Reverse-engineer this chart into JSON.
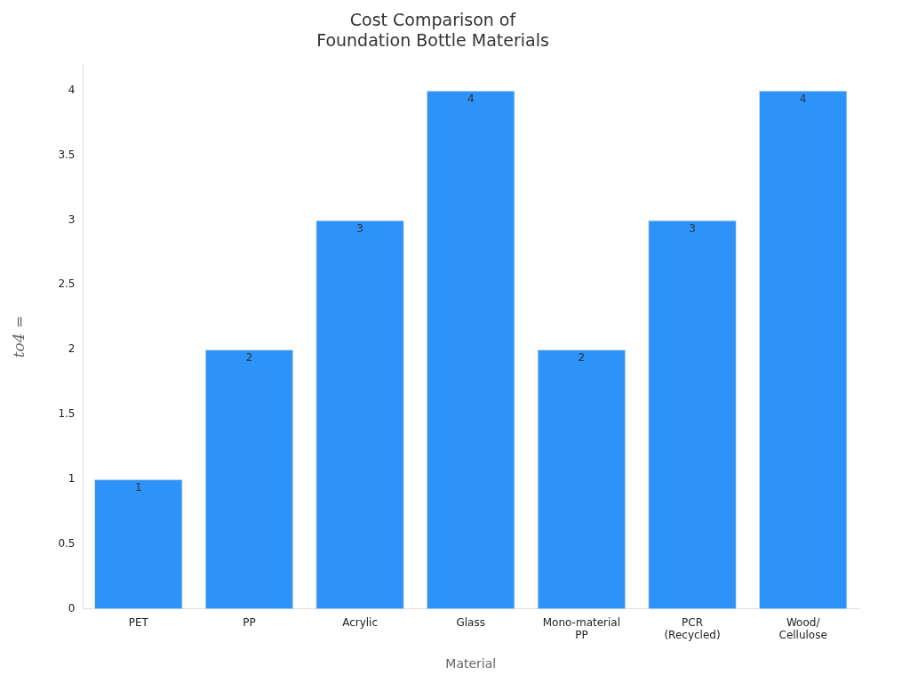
{
  "chart_data": {
    "type": "bar",
    "title": "Cost Comparison of\nFoundation Bottle Materials",
    "xlabel": "Material",
    "ylabel": "to4 =",
    "categories": [
      "PET",
      "PP",
      "Acrylic",
      "Glass",
      "Mono-material\nPP",
      "PCR\n(Recycled)",
      "Wood/\nCellulose"
    ],
    "values": [
      1,
      2,
      3,
      4,
      2,
      3,
      4
    ],
    "color": "#2e93f9",
    "ylim": [
      0,
      4.2
    ],
    "yticks": [
      0,
      0.5,
      1,
      1.5,
      2,
      2.5,
      3,
      3.5,
      4
    ],
    "grid": false,
    "legend": false,
    "data_labels": true
  }
}
